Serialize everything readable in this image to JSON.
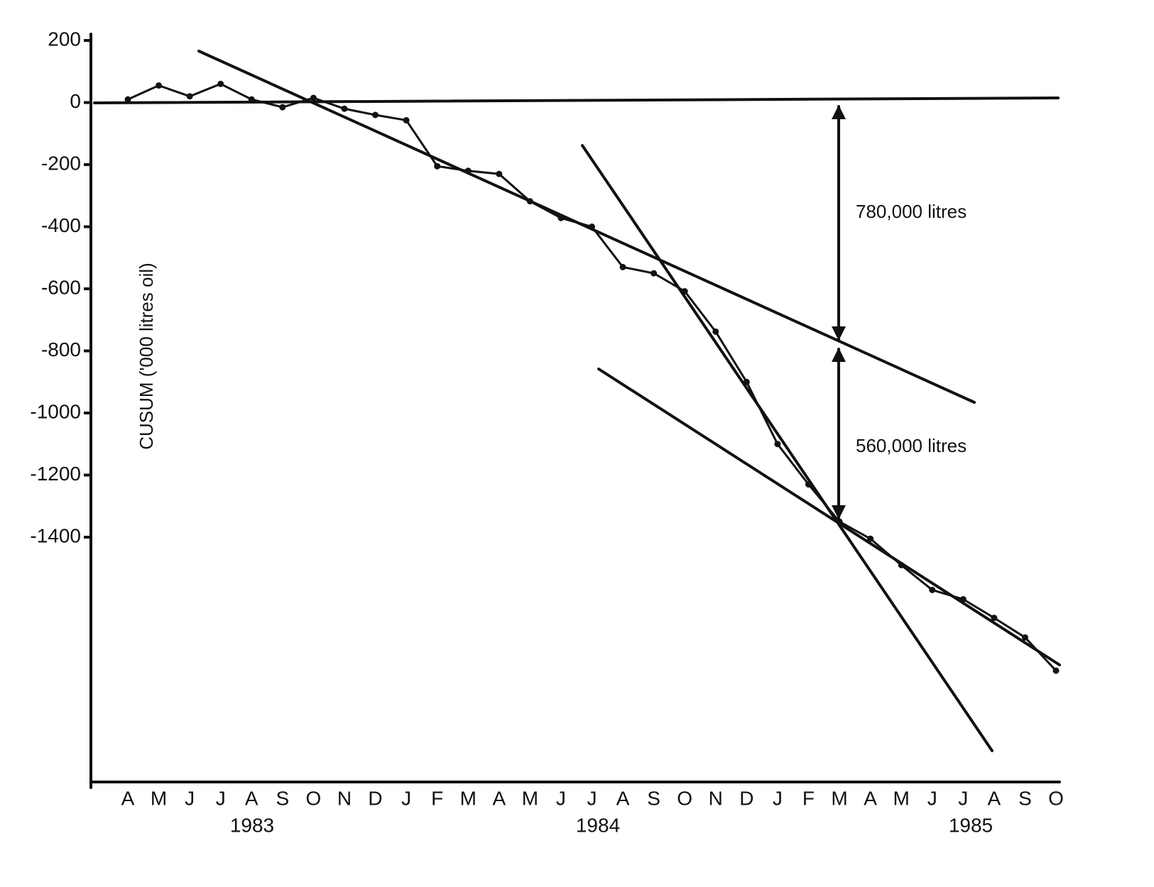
{
  "chart_data": {
    "type": "line",
    "y_label": "CUSUM ('000 litres oil)",
    "categories": [
      "A",
      "M",
      "J",
      "J",
      "A",
      "S",
      "O",
      "N",
      "D",
      "J",
      "F",
      "M",
      "A",
      "M",
      "J",
      "J",
      "A",
      "S",
      "O",
      "N",
      "D",
      "J",
      "F",
      "M",
      "A",
      "M",
      "J",
      "J",
      "A",
      "S",
      "O"
    ],
    "year_labels": [
      "1983",
      "1984",
      "1985"
    ],
    "values": [
      10,
      55,
      20,
      60,
      10,
      -15,
      15,
      -20,
      -40,
      -57,
      -205,
      -220,
      -230,
      -318,
      -372,
      -400,
      -530,
      -550,
      -608,
      -738,
      -900,
      -1100,
      -1230,
      -1350,
      -1405,
      -1490,
      -1570,
      -1600,
      -1660,
      -1723,
      -1830
    ],
    "color": "#111111",
    "ylim": [
      -2200,
      200
    ],
    "yticks": [
      200,
      0,
      -200,
      -400,
      -600,
      -800,
      -1000,
      -1200,
      -1400
    ],
    "annotations": [
      "780,000 litres",
      "560,000 litres"
    ]
  }
}
